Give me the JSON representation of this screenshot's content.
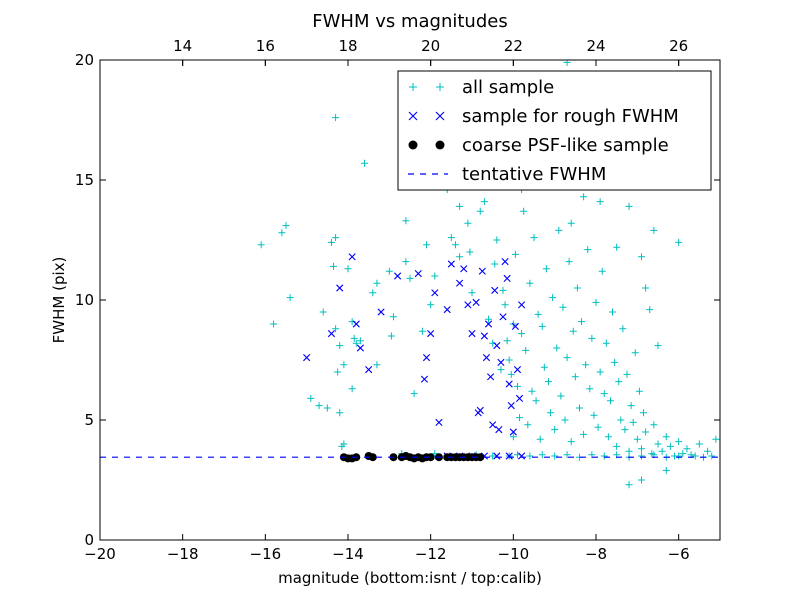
{
  "chart_data": {
    "type": "scatter",
    "title": "FWHM vs magnitudes",
    "xlabel": "magnitude (bottom:isnt / top:calib)",
    "ylabel": "FWHM (pix)",
    "xlim": [
      -20,
      -5
    ],
    "ylim": [
      0,
      20
    ],
    "x_ticks": [
      -20,
      -18,
      -16,
      -14,
      -12,
      -10,
      -8,
      -6
    ],
    "x_tick_labels": [
      "−20",
      "−18",
      "−16",
      "−14",
      "−12",
      "−10",
      "−8",
      "−6"
    ],
    "y_ticks": [
      0,
      5,
      10,
      15,
      20
    ],
    "y_tick_labels": [
      "0",
      "5",
      "10",
      "15",
      "20"
    ],
    "top_axis": {
      "offset": 32,
      "ticks": [
        14,
        16,
        18,
        20,
        22,
        24,
        26
      ],
      "tick_labels": [
        "14",
        "16",
        "18",
        "20",
        "22",
        "24",
        "26"
      ]
    },
    "grid": false,
    "legend_position": "top-right",
    "series": [
      {
        "name": "all sample",
        "marker": "+",
        "color": "#00bfbf",
        "points": [
          [
            -16.1,
            12.3
          ],
          [
            -15.8,
            9.0
          ],
          [
            -15.6,
            12.8
          ],
          [
            -15.5,
            13.1
          ],
          [
            -15.4,
            10.1
          ],
          [
            -14.7,
            5.6
          ],
          [
            -14.5,
            5.5
          ],
          [
            -14.4,
            12.4
          ],
          [
            -14.3,
            12.6
          ],
          [
            -14.35,
            11.4
          ],
          [
            -14.3,
            17.6
          ],
          [
            -14.6,
            9.5
          ],
          [
            -14.2,
            8.1
          ],
          [
            -14.3,
            8.8
          ],
          [
            -14.25,
            7.0
          ],
          [
            -14.1,
            7.3
          ],
          [
            -14.0,
            11.3
          ],
          [
            -14.2,
            5.3
          ],
          [
            -14.15,
            3.9
          ],
          [
            -14.1,
            4.0
          ],
          [
            -13.9,
            9.1
          ],
          [
            -13.85,
            8.4
          ],
          [
            -13.8,
            8.2
          ],
          [
            -13.9,
            6.3
          ],
          [
            -13.6,
            15.7
          ],
          [
            -13.4,
            10.3
          ],
          [
            -13.3,
            10.7
          ],
          [
            -13.0,
            11.2
          ],
          [
            -12.9,
            9.3
          ],
          [
            -12.95,
            8.5
          ],
          [
            -12.6,
            13.3
          ],
          [
            -12.5,
            10.9
          ],
          [
            -12.2,
            8.7
          ],
          [
            -12.1,
            12.3
          ],
          [
            -12.0,
            14.9
          ],
          [
            -12.0,
            9.8
          ],
          [
            -11.9,
            11.0
          ],
          [
            -11.8,
            15.0
          ],
          [
            -11.6,
            14.6
          ],
          [
            -11.5,
            12.6
          ],
          [
            -11.4,
            12.3
          ],
          [
            -11.3,
            11.8
          ],
          [
            -11.2,
            15.5
          ],
          [
            -11.1,
            13.2
          ],
          [
            -11.05,
            12.0
          ],
          [
            -11.0,
            10.3
          ],
          [
            -10.8,
            13.7
          ],
          [
            -10.7,
            14.1
          ],
          [
            -10.6,
            9.2
          ],
          [
            -10.5,
            8.2
          ],
          [
            -10.45,
            11.5
          ],
          [
            -10.4,
            12.5
          ],
          [
            -10.3,
            7.1
          ],
          [
            -10.25,
            10.4
          ],
          [
            -10.2,
            9.8
          ],
          [
            -10.15,
            8.3
          ],
          [
            -10.1,
            7.5
          ],
          [
            -10.05,
            6.9
          ],
          [
            -10.0,
            4.3
          ],
          [
            -10.0,
            9.0
          ],
          [
            -9.95,
            11.9
          ],
          [
            -9.9,
            6.4
          ],
          [
            -9.85,
            5.1
          ],
          [
            -9.8,
            8.6
          ],
          [
            -9.75,
            13.7
          ],
          [
            -9.7,
            7.9
          ],
          [
            -9.65,
            4.8
          ],
          [
            -9.6,
            10.7
          ],
          [
            -9.55,
            6.2
          ],
          [
            -9.5,
            12.6
          ],
          [
            -9.45,
            5.8
          ],
          [
            -9.4,
            9.4
          ],
          [
            -9.35,
            4.2
          ],
          [
            -9.3,
            8.9
          ],
          [
            -9.25,
            7.2
          ],
          [
            -9.2,
            11.3
          ],
          [
            -9.15,
            6.6
          ],
          [
            -9.1,
            5.3
          ],
          [
            -9.05,
            10.1
          ],
          [
            -9.0,
            4.6
          ],
          [
            -8.95,
            8.0
          ],
          [
            -8.9,
            12.9
          ],
          [
            -8.85,
            6.0
          ],
          [
            -8.8,
            9.7
          ],
          [
            -8.75,
            5.0
          ],
          [
            -8.7,
            7.6
          ],
          [
            -8.65,
            11.6
          ],
          [
            -8.6,
            4.1
          ],
          [
            -8.55,
            8.7
          ],
          [
            -8.5,
            6.8
          ],
          [
            -8.45,
            10.5
          ],
          [
            -8.4,
            5.5
          ],
          [
            -8.35,
            9.1
          ],
          [
            -8.3,
            4.4
          ],
          [
            -8.25,
            7.3
          ],
          [
            -8.2,
            12.1
          ],
          [
            -8.15,
            6.3
          ],
          [
            -8.1,
            8.4
          ],
          [
            -8.05,
            5.2
          ],
          [
            -8.0,
            9.9
          ],
          [
            -7.95,
            4.7
          ],
          [
            -7.9,
            7.0
          ],
          [
            -7.85,
            11.2
          ],
          [
            -7.8,
            6.1
          ],
          [
            -7.75,
            8.2
          ],
          [
            -7.7,
            4.3
          ],
          [
            -7.65,
            5.8
          ],
          [
            -7.6,
            9.5
          ],
          [
            -7.55,
            7.4
          ],
          [
            -7.5,
            3.9
          ],
          [
            -7.45,
            6.6
          ],
          [
            -7.4,
            5.0
          ],
          [
            -7.35,
            8.8
          ],
          [
            -7.3,
            4.6
          ],
          [
            -7.25,
            6.9
          ],
          [
            -7.2,
            3.7
          ],
          [
            -7.15,
            5.6
          ],
          [
            -7.1,
            4.9
          ],
          [
            -7.05,
            7.8
          ],
          [
            -7.0,
            4.2
          ],
          [
            -6.95,
            6.2
          ],
          [
            -6.9,
            3.8
          ],
          [
            -6.85,
            5.3
          ],
          [
            -6.8,
            4.5
          ],
          [
            -6.7,
            9.6
          ],
          [
            -6.65,
            3.6
          ],
          [
            -6.6,
            4.8
          ],
          [
            -6.5,
            4.0
          ],
          [
            -6.4,
            3.7
          ],
          [
            -6.3,
            4.3
          ],
          [
            -6.2,
            3.9
          ],
          [
            -6.1,
            3.5
          ],
          [
            -6.0,
            4.1
          ],
          [
            -5.9,
            3.6
          ],
          [
            -5.8,
            3.8
          ],
          [
            -5.6,
            3.5
          ],
          [
            -5.5,
            4.0
          ],
          [
            -5.3,
            3.7
          ],
          [
            -5.1,
            4.2
          ],
          [
            -7.2,
            2.3
          ],
          [
            -6.9,
            2.5
          ],
          [
            -6.3,
            2.9
          ],
          [
            -6.6,
            12.9
          ],
          [
            -6.0,
            12.4
          ],
          [
            -7.5,
            12.2
          ],
          [
            -7.0,
            15.1
          ],
          [
            -6.9,
            11.8
          ],
          [
            -7.2,
            13.9
          ],
          [
            -6.5,
            8.1
          ],
          [
            -6.8,
            10.5
          ],
          [
            -7.6,
            16.3
          ],
          [
            -8.1,
            17.7
          ],
          [
            -8.3,
            14.3
          ],
          [
            -8.6,
            13.2
          ],
          [
            -9.0,
            15.8
          ],
          [
            -9.4,
            16.7
          ],
          [
            -9.8,
            14.6
          ],
          [
            -10.3,
            16.0
          ],
          [
            -10.7,
            15.3
          ],
          [
            -11.5,
            15.4
          ],
          [
            -8.7,
            19.9
          ],
          [
            -6.3,
            14.8
          ],
          [
            -9.2,
            18.2
          ],
          [
            -10.1,
            17.4
          ],
          [
            -8.9,
            16.4
          ],
          [
            -7.9,
            14.1
          ],
          [
            -11.3,
            13.9
          ],
          [
            -12.6,
            11.6
          ],
          [
            -13.7,
            8.3
          ],
          [
            -14.9,
            5.9
          ],
          [
            -13.3,
            7.3
          ],
          [
            -12.4,
            6.1
          ],
          [
            -12.7,
            3.6
          ],
          [
            -11.9,
            3.6
          ],
          [
            -10.9,
            3.55
          ],
          [
            -10.5,
            3.5
          ],
          [
            -10.1,
            3.5
          ],
          [
            -9.9,
            3.55
          ],
          [
            -9.6,
            3.5
          ],
          [
            -9.3,
            3.55
          ],
          [
            -9.0,
            3.5
          ],
          [
            -8.7,
            3.55
          ],
          [
            -8.4,
            3.45
          ],
          [
            -8.1,
            3.55
          ],
          [
            -7.8,
            3.5
          ],
          [
            -7.5,
            3.55
          ],
          [
            -7.2,
            3.45
          ],
          [
            -6.9,
            3.5
          ],
          [
            -6.6,
            3.55
          ],
          [
            -6.3,
            3.45
          ],
          [
            -6.0,
            3.5
          ],
          [
            -5.7,
            3.55
          ],
          [
            -5.4,
            3.45
          ],
          [
            -5.2,
            3.5
          ]
        ]
      },
      {
        "name": "sample for rough FWHM",
        "marker": "x",
        "color": "#0000ff",
        "points": [
          [
            -15.0,
            7.6
          ],
          [
            -14.4,
            8.6
          ],
          [
            -14.2,
            10.5
          ],
          [
            -13.9,
            11.8
          ],
          [
            -13.8,
            9.0
          ],
          [
            -13.7,
            8.0
          ],
          [
            -13.5,
            7.1
          ],
          [
            -13.2,
            9.5
          ],
          [
            -12.8,
            11.0
          ],
          [
            -12.3,
            11.1
          ],
          [
            -12.0,
            8.6
          ],
          [
            -12.1,
            7.6
          ],
          [
            -12.15,
            6.7
          ],
          [
            -11.9,
            10.3
          ],
          [
            -11.8,
            4.9
          ],
          [
            -11.6,
            9.6
          ],
          [
            -11.5,
            11.5
          ],
          [
            -11.3,
            10.7
          ],
          [
            -11.2,
            11.3
          ],
          [
            -11.1,
            9.8
          ],
          [
            -11.0,
            8.6
          ],
          [
            -10.9,
            9.9
          ],
          [
            -10.85,
            5.3
          ],
          [
            -10.8,
            5.4
          ],
          [
            -10.75,
            11.2
          ],
          [
            -10.7,
            8.5
          ],
          [
            -10.65,
            7.6
          ],
          [
            -10.6,
            9.0
          ],
          [
            -10.55,
            6.8
          ],
          [
            -10.5,
            4.8
          ],
          [
            -10.45,
            10.4
          ],
          [
            -10.4,
            8.1
          ],
          [
            -10.35,
            4.6
          ],
          [
            -10.3,
            7.4
          ],
          [
            -10.25,
            9.3
          ],
          [
            -10.2,
            11.6
          ],
          [
            -10.15,
            10.9
          ],
          [
            -10.1,
            6.5
          ],
          [
            -10.05,
            5.6
          ],
          [
            -10.0,
            4.5
          ],
          [
            -9.95,
            8.9
          ],
          [
            -9.9,
            7.1
          ],
          [
            -9.85,
            5.9
          ],
          [
            -9.8,
            9.8
          ],
          [
            -11.6,
            3.5
          ],
          [
            -11.3,
            3.5
          ],
          [
            -11.0,
            3.5
          ],
          [
            -10.7,
            3.5
          ],
          [
            -10.4,
            3.5
          ],
          [
            -10.1,
            3.5
          ],
          [
            -9.8,
            3.5
          ]
        ]
      },
      {
        "name": "coarse PSF-like sample",
        "marker": "o",
        "color": "#000000",
        "points": [
          [
            -14.1,
            3.45
          ],
          [
            -14.0,
            3.4
          ],
          [
            -13.9,
            3.4
          ],
          [
            -13.8,
            3.45
          ],
          [
            -13.5,
            3.5
          ],
          [
            -13.4,
            3.45
          ],
          [
            -12.9,
            3.45
          ],
          [
            -12.7,
            3.45
          ],
          [
            -12.6,
            3.5
          ],
          [
            -12.5,
            3.45
          ],
          [
            -12.4,
            3.4
          ],
          [
            -12.3,
            3.45
          ],
          [
            -12.2,
            3.4
          ],
          [
            -12.1,
            3.45
          ],
          [
            -12.0,
            3.45
          ],
          [
            -11.8,
            3.45
          ],
          [
            -11.6,
            3.45
          ],
          [
            -11.5,
            3.45
          ],
          [
            -11.4,
            3.45
          ],
          [
            -11.3,
            3.45
          ],
          [
            -11.2,
            3.45
          ],
          [
            -11.1,
            3.45
          ],
          [
            -11.0,
            3.45
          ],
          [
            -10.9,
            3.45
          ],
          [
            -10.8,
            3.45
          ]
        ]
      },
      {
        "name": "tentative FWHM",
        "marker": "dashed-line",
        "color": "#0000ff",
        "y": 3.45
      }
    ]
  }
}
